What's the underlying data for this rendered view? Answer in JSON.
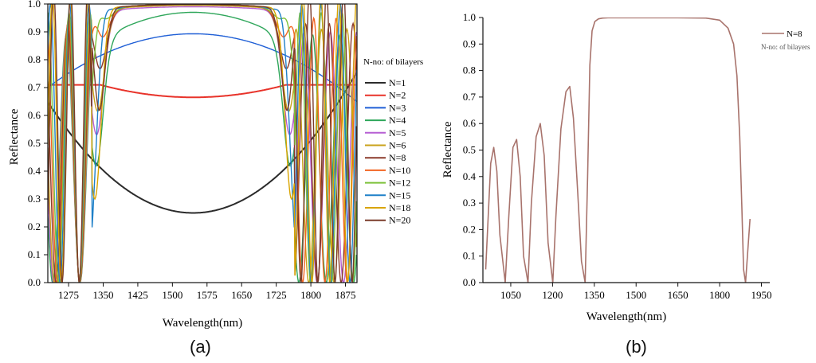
{
  "chart_data": [
    {
      "type": "line",
      "panel": "a",
      "caption": "(a)",
      "xlabel": "Wavelength(nm)",
      "ylabel": "Reflectance",
      "xlim": [
        1230,
        1900
      ],
      "ylim": [
        0,
        1.0
      ],
      "xticks": [
        1275,
        1350,
        1425,
        1500,
        1575,
        1650,
        1725,
        1800,
        1875
      ],
      "yticks": [
        0.0,
        0.1,
        0.2,
        0.3,
        0.4,
        0.5,
        0.6,
        0.7,
        0.8,
        0.9,
        1.0
      ],
      "legend_title": "N-no: of bilayers",
      "legend_position": "right",
      "series": [
        {
          "name": "N=1",
          "color": "#2b2b2b",
          "peak": 0.25,
          "stack": 1
        },
        {
          "name": "N=2",
          "color": "#e8332a",
          "peak": 0.665,
          "stack": 2
        },
        {
          "name": "N=3",
          "color": "#1f5fd6",
          "peak": 0.893,
          "stack": 3
        },
        {
          "name": "N=4",
          "color": "#2ea65a",
          "peak": 0.97,
          "stack": 4
        },
        {
          "name": "N=5",
          "color": "#b65fd3",
          "peak": 0.99,
          "stack": 5
        },
        {
          "name": "N=6",
          "color": "#c9a21a",
          "peak": 0.995,
          "stack": 6
        },
        {
          "name": "N=8",
          "color": "#8b3a2b",
          "peak": 0.998,
          "stack": 8
        },
        {
          "name": "N=10",
          "color": "#f26522",
          "peak": 0.999,
          "stack": 10
        },
        {
          "name": "N=12",
          "color": "#7cc23a",
          "peak": 0.999,
          "stack": 12
        },
        {
          "name": "N=15",
          "color": "#1f80c8",
          "peak": 0.999,
          "stack": 15
        },
        {
          "name": "N=18",
          "color": "#d9a400",
          "peak": 0.999,
          "stack": 18
        },
        {
          "name": "N=20",
          "color": "#7a3b2a",
          "peak": 0.999,
          "stack": 20
        }
      ]
    },
    {
      "type": "line",
      "panel": "b",
      "caption": "(b)",
      "xlabel": "Wavelength(nm)",
      "ylabel": "Reflectance",
      "xlim": [
        950,
        1980
      ],
      "ylim": [
        0,
        1.0
      ],
      "xticks": [
        1050,
        1200,
        1350,
        1500,
        1650,
        1800,
        1950
      ],
      "yticks": [
        0.0,
        0.1,
        0.2,
        0.3,
        0.4,
        0.5,
        0.6,
        0.7,
        0.8,
        0.9,
        1.0
      ],
      "legend_title": "N-no: of bilayers",
      "legend_position": "top-right",
      "series": [
        {
          "name": "N=8",
          "color": "#a8736c",
          "x": [
            960,
            978,
            989,
            1000,
            1011,
            1030,
            1043,
            1058,
            1071,
            1084,
            1096,
            1112,
            1124,
            1141,
            1156,
            1170,
            1184,
            1201,
            1212,
            1230,
            1248,
            1262,
            1275,
            1290,
            1304,
            1317,
            1326,
            1334,
            1342,
            1352,
            1365,
            1380,
            1400,
            1500,
            1650,
            1750,
            1800,
            1830,
            1850,
            1862,
            1872,
            1880,
            1886,
            1893,
            1901,
            1909
          ],
          "y": [
            0.05,
            0.45,
            0.51,
            0.42,
            0.18,
            0.0,
            0.25,
            0.51,
            0.54,
            0.4,
            0.1,
            0.0,
            0.3,
            0.55,
            0.6,
            0.48,
            0.15,
            0.0,
            0.25,
            0.58,
            0.72,
            0.74,
            0.62,
            0.35,
            0.08,
            0.0,
            0.4,
            0.82,
            0.95,
            0.985,
            0.995,
            0.998,
            0.999,
            0.999,
            0.999,
            0.998,
            0.99,
            0.96,
            0.9,
            0.78,
            0.55,
            0.28,
            0.05,
            0.0,
            0.12,
            0.24
          ]
        }
      ]
    }
  ]
}
